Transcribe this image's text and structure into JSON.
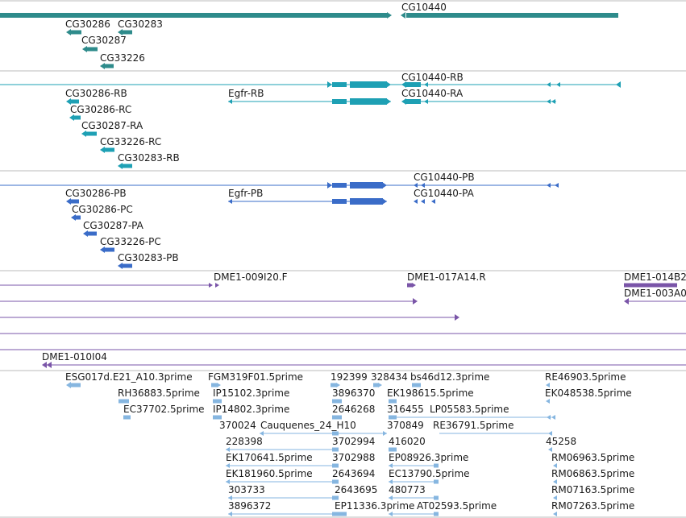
{
  "colors": {
    "separator": "#bbbbbb",
    "gene": "#2e8b8b",
    "mrna_r": "#1ea0b4",
    "prot_p": "#3a6cc8",
    "clone": "#7a55a8",
    "est": "#86b6e0",
    "text": "#1a1a1a"
  },
  "tracks": {
    "genes": {
      "labels": [
        "CG10440",
        "CG30286",
        "CG30283",
        "CG30287",
        "CG33226"
      ]
    },
    "transcripts": {
      "labels": [
        "CG10440-RB",
        "CG30286-RB",
        "Egfr-RB",
        "CG10440-RA",
        "CG30286-RC",
        "CG30287-RA",
        "CG33226-RC",
        "CG30283-RB"
      ]
    },
    "proteins": {
      "labels": [
        "CG10440-PB",
        "CG30286-PB",
        "Egfr-PB",
        "CG10440-PA",
        "CG30286-PC",
        "CG30287-PA",
        "CG33226-PC",
        "CG30283-PB"
      ]
    },
    "clones": {
      "labels": [
        "DME1-009I20.F",
        "DME1-017A14.R",
        "DME1-014B2",
        "DME1-003A0",
        "DME1-010I04"
      ]
    },
    "ests": {
      "labels": [
        "ESG017d.E21_A10.3prime",
        "FGM319F01.5prime",
        "192399",
        "328434",
        "bs46d12.3prime",
        "RE46903.5prime",
        "RH36883.5prime",
        "IP15102.3prime",
        "3896370",
        "EK198615.5prime",
        "EK048538.5prime",
        "EC37702.5prime",
        "IP14802.3prime",
        "2646268",
        "316455",
        "LP05583.5prime",
        "370024",
        "Cauquenes_24_H10",
        "370849",
        "RE36791.5prime",
        "228398",
        "3702994",
        "416020",
        "45258",
        "EK170641.5prime",
        "3702988",
        "EP08926.3prime",
        "RM06963.5prime",
        "EK181960.5prime",
        "2643694",
        "EC13790.5prime",
        "RM06863.5prime",
        "303733",
        "2643695",
        "480773",
        "RM07163.5prime",
        "3896372",
        "EP11336.3prime",
        "AT02593.5prime",
        "RM07263.5prime"
      ]
    }
  }
}
